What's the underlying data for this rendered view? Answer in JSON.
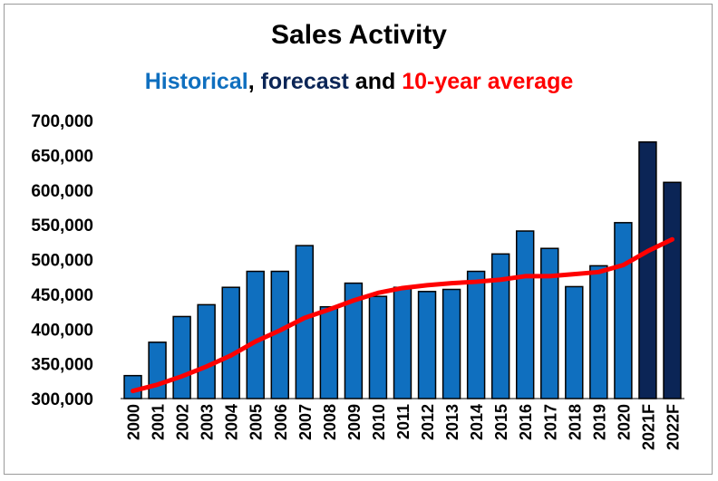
{
  "colors": {
    "historical": "#0f6fbf",
    "forecast": "#0b2556",
    "average": "#ff0000",
    "bar_stroke": "#000000"
  },
  "subtitle": {
    "historical": "Historical",
    "sep": ", ",
    "forecast": "forecast",
    "and": " and ",
    "average": "10-year average"
  },
  "chart_data": {
    "type": "bar",
    "title": "Sales Activity",
    "categories": [
      "2000",
      "2001",
      "2002",
      "2003",
      "2004",
      "2005",
      "2006",
      "2007",
      "2008",
      "2009",
      "2010",
      "2011",
      "2012",
      "2013",
      "2014",
      "2015",
      "2016",
      "2017",
      "2018",
      "2019",
      "2020",
      "2021F",
      "2022F"
    ],
    "series": [
      {
        "name": "Historical",
        "type": "bar",
        "values": [
          333000,
          381000,
          418000,
          435000,
          460000,
          483000,
          483000,
          520000,
          432000,
          466000,
          447000,
          460000,
          454000,
          457000,
          483000,
          508000,
          541000,
          516000,
          461000,
          491000,
          553000,
          null,
          null
        ]
      },
      {
        "name": "forecast",
        "type": "bar",
        "values": [
          null,
          null,
          null,
          null,
          null,
          null,
          null,
          null,
          null,
          null,
          null,
          null,
          null,
          null,
          null,
          null,
          null,
          null,
          null,
          null,
          null,
          669000,
          611000
        ]
      },
      {
        "name": "10-year average",
        "type": "line",
        "values": [
          311000,
          320000,
          332000,
          346000,
          362000,
          382000,
          398000,
          416000,
          428000,
          441000,
          452000,
          459000,
          463000,
          466000,
          468000,
          471000,
          476000,
          476000,
          479000,
          482000,
          492000,
          512000,
          529000
        ]
      }
    ],
    "ylim": [
      300000,
      700000
    ],
    "yticks": [
      "300,000",
      "350,000",
      "400,000",
      "450,000",
      "500,000",
      "550,000",
      "600,000",
      "650,000",
      "700,000"
    ],
    "xlabel": "",
    "ylabel": "",
    "grid": false,
    "legend": "none"
  }
}
